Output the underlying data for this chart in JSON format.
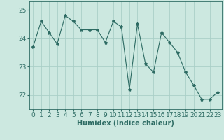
{
  "x": [
    0,
    1,
    2,
    3,
    4,
    5,
    6,
    7,
    8,
    9,
    10,
    11,
    12,
    13,
    14,
    15,
    16,
    17,
    18,
    19,
    20,
    21,
    22,
    23
  ],
  "y": [
    23.7,
    24.6,
    24.2,
    23.8,
    24.8,
    24.6,
    24.3,
    24.3,
    24.3,
    23.85,
    24.6,
    24.4,
    22.2,
    24.5,
    23.1,
    22.8,
    24.2,
    23.85,
    23.5,
    22.8,
    22.35,
    21.85,
    21.85,
    22.1
  ],
  "line_color": "#2d6b63",
  "marker": "*",
  "marker_size": 3,
  "bg_color": "#cce8e0",
  "grid_color": "#aacfc7",
  "xlabel": "Humidex (Indice chaleur)",
  "ylim": [
    21.5,
    25.3
  ],
  "yticks": [
    22,
    23,
    24,
    25
  ],
  "xticks": [
    0,
    1,
    2,
    3,
    4,
    5,
    6,
    7,
    8,
    9,
    10,
    11,
    12,
    13,
    14,
    15,
    16,
    17,
    18,
    19,
    20,
    21,
    22,
    23
  ],
  "xlabel_fontsize": 7,
  "tick_fontsize": 6.5
}
